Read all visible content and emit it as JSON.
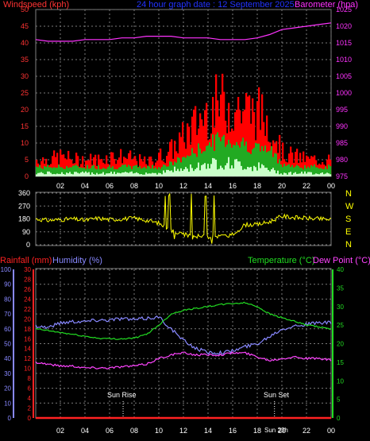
{
  "colors": {
    "wind_axis": "#ff3333",
    "title": "#2233ff",
    "baro": "#ff33ff",
    "grid": "#7a7a7a",
    "dir": "#ffff00",
    "temp": "#22dd22",
    "rain": "#ff2222",
    "humidity": "#8888ff",
    "dew": "#ff44ff",
    "tick_white": "#ffffff"
  },
  "chart_data": [
    {
      "type": "area",
      "title": "24 hour graph date : 12 September 2025",
      "ylabel": "Windspeed (kph)",
      "y2label": "Barometer (hpa)",
      "x_ticks": [
        "02",
        "04",
        "06",
        "08",
        "10",
        "12",
        "14",
        "16",
        "18",
        "20",
        "22",
        "00"
      ],
      "ylim": [
        0,
        50
      ],
      "y_ticks": [
        0,
        5,
        10,
        15,
        20,
        25,
        30,
        35,
        40,
        45,
        50
      ],
      "y2lim": [
        975,
        1025
      ],
      "y2_ticks": [
        975,
        980,
        985,
        990,
        995,
        1000,
        1005,
        1010,
        1015,
        1020,
        1025
      ],
      "grid": true,
      "hours": [
        0,
        1,
        2,
        3,
        4,
        5,
        6,
        7,
        8,
        9,
        10,
        11,
        12,
        13,
        14,
        15,
        16,
        17,
        18,
        19,
        20,
        21,
        22,
        23,
        24
      ],
      "series": [
        {
          "name": "gust",
          "values": [
            5,
            5,
            6,
            5,
            5,
            5,
            6,
            6,
            5,
            4,
            6,
            8,
            12,
            16,
            20,
            22,
            21,
            20,
            19,
            16,
            7,
            6,
            5,
            5,
            5
          ]
        },
        {
          "name": "average",
          "values": [
            3,
            3,
            3,
            3,
            3,
            3,
            3,
            3,
            3,
            3,
            3,
            4,
            6,
            8,
            10,
            12,
            11,
            10,
            9,
            8,
            4,
            3,
            3,
            3,
            3
          ]
        },
        {
          "name": "low",
          "values": [
            1,
            1,
            1,
            1,
            1,
            1,
            1,
            1,
            1,
            1,
            1,
            2,
            2,
            3,
            4,
            4,
            4,
            3,
            3,
            2,
            1,
            1,
            1,
            1,
            1
          ]
        },
        {
          "name": "barometer",
          "values": [
            1016,
            1015.5,
            1015.5,
            1015.5,
            1016,
            1016,
            1016,
            1016.5,
            1016.5,
            1017,
            1017,
            1017,
            1016.5,
            1016.5,
            1016.5,
            1016,
            1016,
            1016,
            1016.5,
            1017.5,
            1019,
            1019.5,
            1020,
            1020.5,
            1021
          ]
        }
      ]
    },
    {
      "type": "line",
      "ylim": [
        0,
        360
      ],
      "y_ticks": [
        0,
        90,
        180,
        270,
        360
      ],
      "dir_labels": [
        "N",
        "W",
        "S",
        "E",
        "N"
      ],
      "hours": [
        0,
        1,
        2,
        3,
        4,
        5,
        6,
        7,
        8,
        9,
        10,
        11,
        12,
        13,
        14,
        15,
        16,
        17,
        18,
        19,
        20,
        21,
        22,
        23,
        24
      ],
      "series": [
        {
          "name": "direction",
          "values": [
            180,
            170,
            175,
            180,
            170,
            185,
            175,
            180,
            185,
            170,
            150,
            100,
            70,
            60,
            60,
            60,
            70,
            140,
            140,
            160,
            200,
            190,
            185,
            180,
            175
          ]
        }
      ]
    },
    {
      "type": "line",
      "left_labels": [
        "Rainfall (mm)",
        "Humidity (%)"
      ],
      "right_labels": [
        "Temperature (°C)",
        "Dew Point (°C)"
      ],
      "rain_lim": [
        0,
        30
      ],
      "rain_ticks": [
        0,
        2,
        4,
        6,
        8,
        10,
        12,
        14,
        16,
        18,
        20,
        22,
        24,
        26,
        28,
        30
      ],
      "hum_lim": [
        0,
        100
      ],
      "hum_ticks": [
        0,
        10,
        20,
        30,
        40,
        50,
        60,
        70,
        80,
        90,
        100
      ],
      "temp_lim": [
        0,
        40
      ],
      "temp_ticks": [
        0,
        5,
        10,
        15,
        20,
        25,
        30,
        35,
        40
      ],
      "x_ticks": [
        "02",
        "04",
        "06",
        "08",
        "10",
        "12",
        "14",
        "16",
        "18",
        "20",
        "22",
        "00"
      ],
      "annotations": [
        "Sun Rise",
        "Sun Set",
        "Sun 23h"
      ],
      "sun_rise_hour": 7.1,
      "sun_set_hour": 19.4,
      "grid": true,
      "hours": [
        0,
        1,
        2,
        3,
        4,
        5,
        6,
        7,
        8,
        9,
        10,
        11,
        12,
        13,
        14,
        15,
        16,
        17,
        18,
        19,
        20,
        21,
        22,
        23,
        24
      ],
      "series": [
        {
          "name": "rainfall",
          "values": [
            0,
            0,
            0,
            0,
            0,
            0,
            0,
            0,
            0,
            0,
            0,
            0,
            0,
            0,
            0,
            0,
            0,
            0,
            0,
            0,
            0,
            0,
            0,
            0,
            0
          ]
        },
        {
          "name": "humidity",
          "values": [
            62,
            61,
            64,
            65,
            65,
            66,
            66,
            67,
            66,
            67,
            68,
            60,
            52,
            47,
            44,
            44,
            45,
            48,
            50,
            55,
            60,
            62,
            63,
            64,
            64
          ]
        },
        {
          "name": "temperature",
          "values": [
            24,
            23.5,
            23,
            22.5,
            22,
            21.5,
            21.3,
            21.3,
            21.5,
            22.5,
            25,
            28,
            29,
            29.5,
            30,
            30.5,
            30.8,
            31,
            30,
            28,
            27,
            26,
            25,
            24.5,
            24
          ]
        },
        {
          "name": "dewpoint",
          "values": [
            15,
            14.5,
            14,
            14,
            13.5,
            13.5,
            13.5,
            13.8,
            14,
            14.5,
            16,
            17,
            17.5,
            17,
            17,
            17,
            17.5,
            17.5,
            16.5,
            15.5,
            16,
            16.5,
            16,
            16,
            15.5
          ]
        }
      ]
    }
  ]
}
